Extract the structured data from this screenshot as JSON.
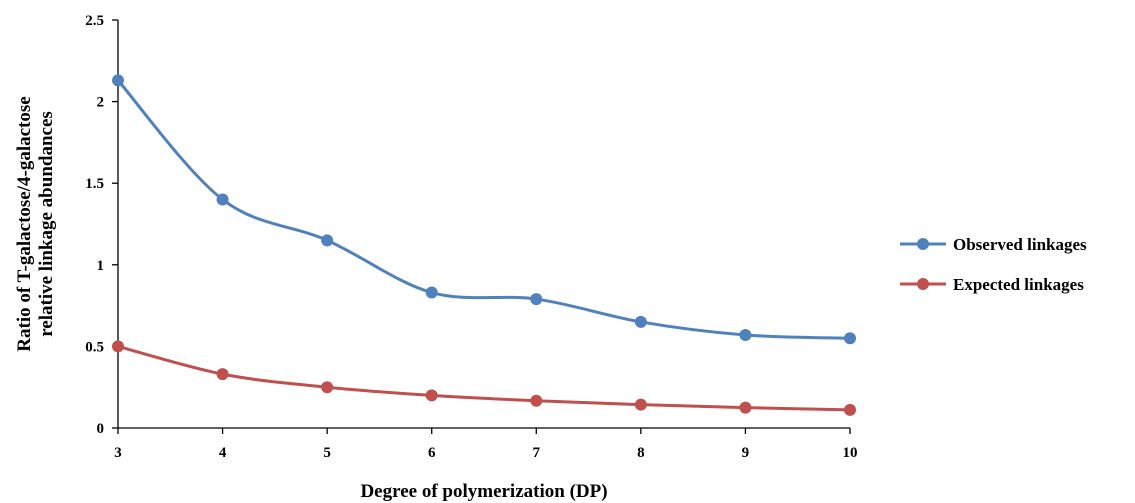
{
  "chart_data": {
    "type": "line",
    "title": "",
    "xlabel": "Degree of polymerization (DP)",
    "ylabel": [
      "Ratio of  T-galactose/4-galactose",
      "relative linkage abundances"
    ],
    "x": [
      3,
      4,
      5,
      6,
      7,
      8,
      9,
      10
    ],
    "xlim": [
      3,
      10
    ],
    "ylim": [
      0,
      2.5
    ],
    "yticks": [
      "0",
      "0.5",
      "1",
      "1.5",
      "2",
      "2.5"
    ],
    "xticks": [
      "3",
      "4",
      "5",
      "6",
      "7",
      "8",
      "9",
      "10"
    ],
    "grid": false,
    "smooth": true,
    "legend_position": "right",
    "series": [
      {
        "name": "Observed linkages",
        "color": "#4f81bd",
        "values": [
          2.13,
          1.4,
          1.15,
          0.83,
          0.79,
          0.65,
          0.57,
          0.55
        ]
      },
      {
        "name": "Expected linkages",
        "color": "#c0504d",
        "values": [
          0.5,
          0.33,
          0.25,
          0.2,
          0.167,
          0.143,
          0.125,
          0.111
        ]
      }
    ]
  }
}
